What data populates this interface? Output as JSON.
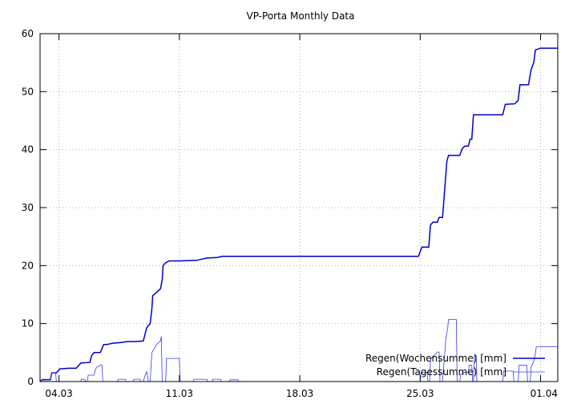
{
  "chart_data": {
    "type": "line",
    "title": "VP-Porta Monthly Data",
    "xlabel": "",
    "ylabel": "",
    "xlim": [
      -1.1,
      29
    ],
    "ylim": [
      0,
      60
    ],
    "grid": true,
    "legend_position": "bottom-right",
    "x_ticks": [
      {
        "label": "04.03",
        "value": 0
      },
      {
        "label": "11.03",
        "value": 7
      },
      {
        "label": "18.03",
        "value": 14
      },
      {
        "label": "25.03",
        "value": 21
      },
      {
        "label": "01.04",
        "value": 28
      }
    ],
    "y_ticks": [
      0,
      10,
      20,
      30,
      40,
      50,
      60
    ],
    "colors": {
      "week": "#0000cc",
      "day": "#3a3aee",
      "grid": "#b0b0b0",
      "axis": "#000000"
    },
    "series": [
      {
        "name": "Regen(Wochensumme) [mm]",
        "points": [
          [
            -1.1,
            0
          ],
          [
            -0.98,
            0.3
          ],
          [
            -0.7,
            0.3
          ],
          [
            -0.5,
            0.3
          ],
          [
            -0.42,
            1.5
          ],
          [
            -0.15,
            1.5
          ],
          [
            0.05,
            2.2
          ],
          [
            0.6,
            2.3
          ],
          [
            1.0,
            2.3
          ],
          [
            1.27,
            3.2
          ],
          [
            1.8,
            3.3
          ],
          [
            1.9,
            4.5
          ],
          [
            2.05,
            5.0
          ],
          [
            2.4,
            5.0
          ],
          [
            2.6,
            6.4
          ],
          [
            2.8,
            6.4
          ],
          [
            3.1,
            6.6
          ],
          [
            3.5,
            6.7
          ],
          [
            4.0,
            6.9
          ],
          [
            4.4,
            6.9
          ],
          [
            4.9,
            7.0
          ],
          [
            5.1,
            9.3
          ],
          [
            5.3,
            10.0
          ],
          [
            5.4,
            12.5
          ],
          [
            5.45,
            14.8
          ],
          [
            5.6,
            15.2
          ],
          [
            5.9,
            16.0
          ],
          [
            6.0,
            17.5
          ],
          [
            6.05,
            20.0
          ],
          [
            6.2,
            20.5
          ],
          [
            6.4,
            20.8
          ],
          [
            7.0,
            20.8
          ],
          [
            8.0,
            20.9
          ],
          [
            8.6,
            21.3
          ],
          [
            9.2,
            21.4
          ],
          [
            9.5,
            21.6
          ],
          [
            12.0,
            21.6
          ],
          [
            15.0,
            21.6
          ],
          [
            19.0,
            21.6
          ],
          [
            20.9,
            21.6
          ],
          [
            21.1,
            23.2
          ],
          [
            21.5,
            23.2
          ],
          [
            21.6,
            27.0
          ],
          [
            21.75,
            27.5
          ],
          [
            22.0,
            27.5
          ],
          [
            22.1,
            28.3
          ],
          [
            22.3,
            28.3
          ],
          [
            22.45,
            34.0
          ],
          [
            22.55,
            38.0
          ],
          [
            22.65,
            39.0
          ],
          [
            23.3,
            39.0
          ],
          [
            23.45,
            40.2
          ],
          [
            23.6,
            40.6
          ],
          [
            23.8,
            40.6
          ],
          [
            23.9,
            41.8
          ],
          [
            24.0,
            41.8
          ],
          [
            24.1,
            46.0
          ],
          [
            25.8,
            46.0
          ],
          [
            25.95,
            47.8
          ],
          [
            26.5,
            47.9
          ],
          [
            26.7,
            48.5
          ],
          [
            26.8,
            51.2
          ],
          [
            27.3,
            51.2
          ],
          [
            27.45,
            53.8
          ],
          [
            27.6,
            55.0
          ],
          [
            27.7,
            57.2
          ],
          [
            28.0,
            57.5
          ],
          [
            29.0,
            57.5
          ]
        ]
      },
      {
        "name": "Regen(Tagessumme) [mm]",
        "points": [
          [
            -1.1,
            0
          ],
          [
            -0.98,
            0.4
          ],
          [
            -0.5,
            0.4
          ],
          [
            -0.42,
            1.5
          ],
          [
            -0.2,
            1.5
          ],
          [
            -0.15,
            0
          ],
          [
            1.27,
            0
          ],
          [
            1.3,
            0.4
          ],
          [
            1.5,
            0.4
          ],
          [
            1.55,
            0
          ],
          [
            1.65,
            0
          ],
          [
            1.7,
            1.1
          ],
          [
            2.05,
            1.1
          ],
          [
            2.1,
            2.0
          ],
          [
            2.2,
            2.5
          ],
          [
            2.4,
            2.8
          ],
          [
            2.5,
            2.8
          ],
          [
            2.55,
            0
          ],
          [
            3.4,
            0
          ],
          [
            3.45,
            0.4
          ],
          [
            3.85,
            0.4
          ],
          [
            3.9,
            0
          ],
          [
            4.3,
            0
          ],
          [
            4.35,
            0.4
          ],
          [
            4.7,
            0.4
          ],
          [
            4.75,
            0
          ],
          [
            4.9,
            0
          ],
          [
            5.0,
            1.0
          ],
          [
            5.1,
            1.7
          ],
          [
            5.2,
            0
          ],
          [
            5.3,
            0
          ],
          [
            5.4,
            5.0
          ],
          [
            5.5,
            5.5
          ],
          [
            5.7,
            6.5
          ],
          [
            5.9,
            7.0
          ],
          [
            5.95,
            7.8
          ],
          [
            6.0,
            0
          ],
          [
            6.2,
            0
          ],
          [
            6.25,
            4.0
          ],
          [
            7.0,
            4.0
          ],
          [
            7.05,
            0
          ],
          [
            7.8,
            0
          ],
          [
            7.85,
            0.4
          ],
          [
            8.6,
            0.4
          ],
          [
            8.65,
            0
          ],
          [
            8.9,
            0
          ],
          [
            8.95,
            0.4
          ],
          [
            9.4,
            0.4
          ],
          [
            9.45,
            0
          ],
          [
            9.9,
            0
          ],
          [
            9.95,
            0.3
          ],
          [
            10.4,
            0.3
          ],
          [
            10.45,
            0
          ],
          [
            21.0,
            0
          ],
          [
            21.05,
            1.6
          ],
          [
            21.4,
            1.6
          ],
          [
            21.45,
            0
          ],
          [
            21.55,
            0
          ],
          [
            21.6,
            3.8
          ],
          [
            21.75,
            4.3
          ],
          [
            22.0,
            5.1
          ],
          [
            22.1,
            5.1
          ],
          [
            22.15,
            0
          ],
          [
            22.3,
            0
          ],
          [
            22.4,
            4.0
          ],
          [
            22.5,
            7.5
          ],
          [
            22.6,
            9.2
          ],
          [
            22.65,
            10.7
          ],
          [
            23.1,
            10.7
          ],
          [
            23.15,
            0
          ],
          [
            23.3,
            0
          ],
          [
            23.35,
            1.2
          ],
          [
            23.6,
            1.6
          ],
          [
            23.8,
            1.6
          ],
          [
            23.85,
            2.8
          ],
          [
            24.0,
            2.8
          ],
          [
            24.05,
            0
          ],
          [
            24.1,
            0
          ],
          [
            24.15,
            4.5
          ],
          [
            24.25,
            4.5
          ],
          [
            24.3,
            0
          ],
          [
            25.8,
            0
          ],
          [
            25.85,
            1.8
          ],
          [
            26.4,
            1.8
          ],
          [
            26.45,
            0
          ],
          [
            26.7,
            0
          ],
          [
            26.75,
            2.8
          ],
          [
            27.2,
            2.8
          ],
          [
            27.25,
            0
          ],
          [
            27.4,
            0
          ],
          [
            27.45,
            2.5
          ],
          [
            27.6,
            3.5
          ],
          [
            27.7,
            4.8
          ],
          [
            27.75,
            6.0
          ],
          [
            28.4,
            6.0
          ],
          [
            29.0,
            6.0
          ]
        ]
      }
    ]
  }
}
